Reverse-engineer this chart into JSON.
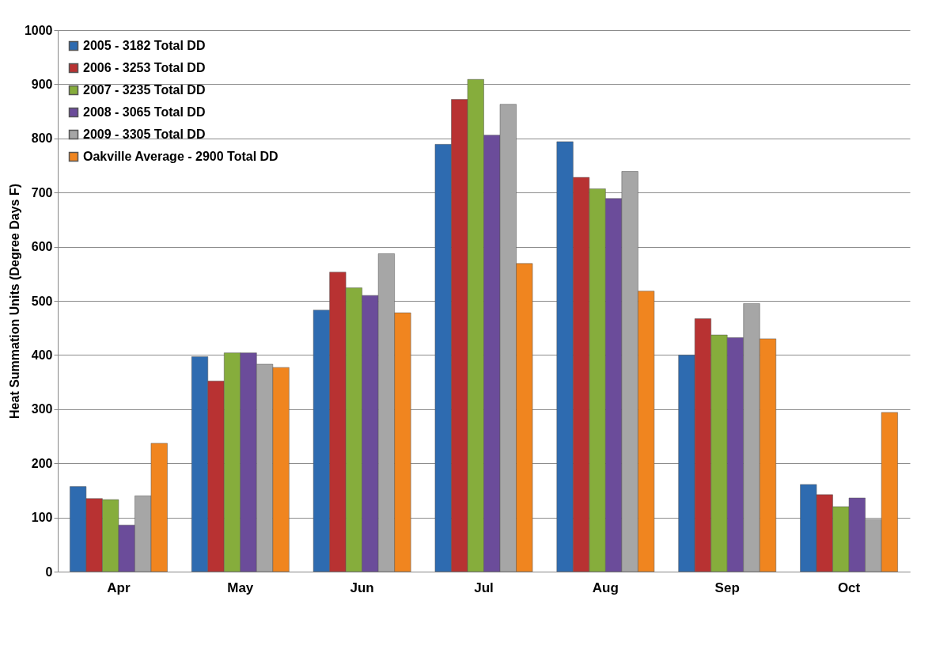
{
  "chart_data": {
    "type": "bar",
    "ylabel": "Heat Summation Units (Degree Days F)",
    "categories": [
      "Apr",
      "May",
      "Jun",
      "Jul",
      "Aug",
      "Sep",
      "Oct"
    ],
    "series": [
      {
        "name": "2005 - 3182 Total DD",
        "color": "#2e6bb0",
        "values": [
          157,
          397,
          483,
          789,
          794,
          400,
          161
        ]
      },
      {
        "name": "2006 - 3253 Total DD",
        "color": "#b83232",
        "values": [
          135,
          352,
          553,
          872,
          728,
          467,
          142
        ]
      },
      {
        "name": "2007 - 3235 Total DD",
        "color": "#86ad3c",
        "values": [
          133,
          404,
          524,
          909,
          707,
          437,
          120
        ]
      },
      {
        "name": "2008 - 3065 Total DD",
        "color": "#6b4c9a",
        "values": [
          86,
          404,
          510,
          806,
          689,
          432,
          136
        ]
      },
      {
        "name": "2009 - 3305 Total DD",
        "color": "#a6a6a6",
        "values": [
          140,
          383,
          587,
          863,
          739,
          495,
          96
        ]
      },
      {
        "name": "Oakville Average - 2900 Total DD",
        "color": "#f0851f",
        "values": [
          237,
          377,
          478,
          569,
          518,
          430,
          294
        ]
      }
    ],
    "ylim": [
      0,
      1000
    ],
    "yticks": [
      0,
      100,
      200,
      300,
      400,
      500,
      600,
      700,
      800,
      900,
      1000
    ],
    "grid": "y",
    "legend": "top left"
  }
}
